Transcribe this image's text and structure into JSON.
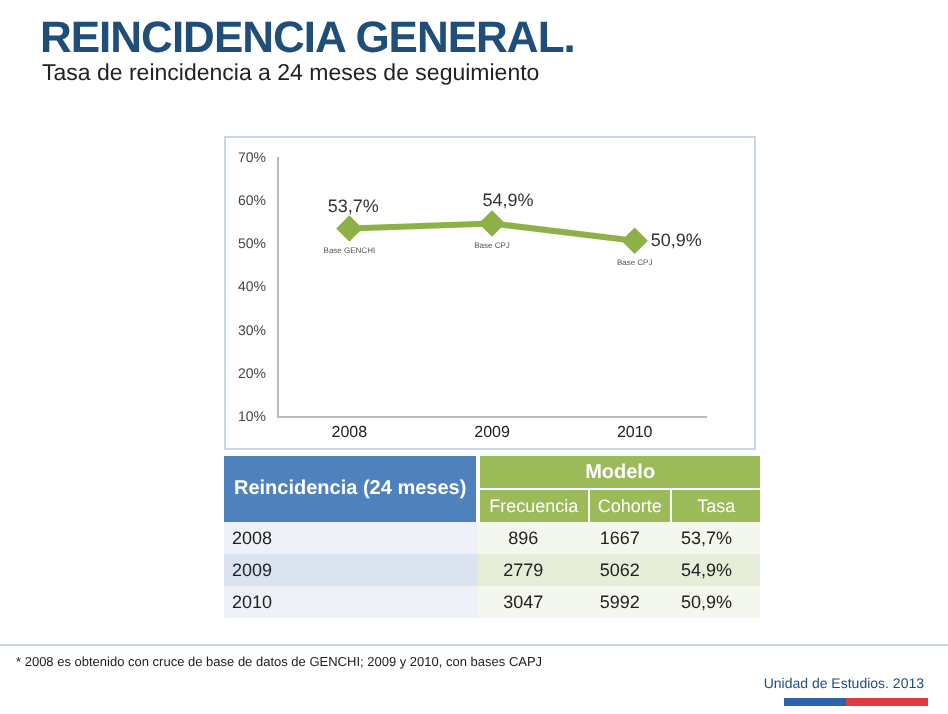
{
  "chart_data": [
    {
      "type": "line",
      "title": "REINCIDENCIA GENERAL.",
      "subtitle": "Tasa de reincidencia a 24 meses de seguimiento",
      "categories": [
        "2008",
        "2009",
        "2010"
      ],
      "series": [
        {
          "color": "#8db146",
          "values": [
            53.7,
            54.9,
            50.9
          ],
          "value_labels": [
            "53,7%",
            "54,9%",
            "50,9%"
          ]
        }
      ],
      "ylim": [
        10,
        70
      ],
      "yticks": [
        {
          "value": 10,
          "label": "10%"
        },
        {
          "value": 20,
          "label": "20%"
        },
        {
          "value": 30,
          "label": "30%"
        },
        {
          "value": 40,
          "label": "40%"
        },
        {
          "value": 50,
          "label": "50%"
        },
        {
          "value": 60,
          "label": "60%"
        },
        {
          "value": 70,
          "label": "70%"
        }
      ],
      "grid": false,
      "legend": false,
      "marker": "diamond",
      "line_style": "solid",
      "annotations": [
        "Base GENCHI",
        "Base CPJ",
        "Base CPJ",
        "* 2008 es obtenido con cruce de base de datos de GENCHI; 2009 y 2010, con bases CAPJ",
        "Unidad de Estudios. 2013"
      ]
    },
    {
      "type": "other",
      "title": "Modelo",
      "legend_title": "Reincidencia (24 meses)",
      "categories": [
        "2008",
        "2009",
        "2010"
      ],
      "data_labels": true,
      "series": [
        {
          "name": "Frecuencia",
          "colors": [
            "#f4f7ee",
            "#e6edd8",
            "#f4f7ee"
          ],
          "values": [
            896,
            2779,
            3047
          ]
        },
        {
          "name": "Cohorte",
          "colors": [
            "#f4f7ee",
            "#e6edd8",
            "#f4f7ee"
          ],
          "values": [
            1667,
            5062,
            5992
          ]
        },
        {
          "name": "Tasa",
          "colors": [
            "#f4f7ee",
            "#e6edd8",
            "#f4f7ee"
          ],
          "values": [
            53.7,
            54.9,
            50.9
          ],
          "value_labels": [
            "53,7%",
            "54,9%",
            "50,9%"
          ]
        }
      ]
    }
  ]
}
